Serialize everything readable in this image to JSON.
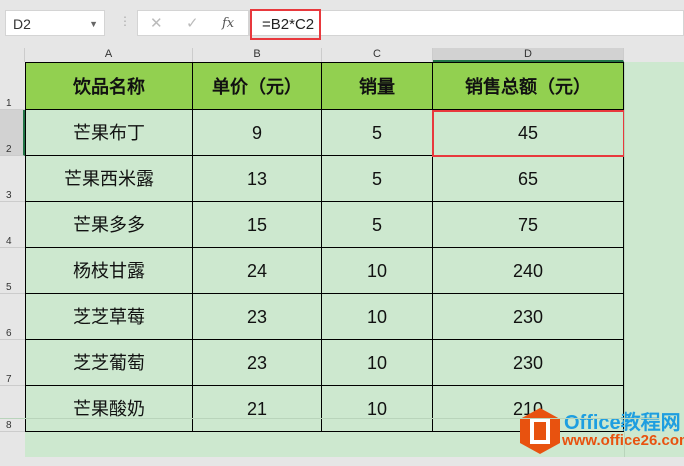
{
  "name_box": "D2",
  "formula": "=B2*C2",
  "formula_icons": [
    "cancel-icon",
    "confirm-icon",
    "fx-icon"
  ],
  "fx_label": "fx",
  "columns": [
    "A",
    "B",
    "C",
    "D"
  ],
  "rows": [
    "1",
    "2",
    "3",
    "4",
    "5",
    "6",
    "7",
    "8"
  ],
  "headers": [
    "饮品名称",
    "单价（元）",
    "销量",
    "销售总额（元）"
  ],
  "data": [
    [
      "芒果布丁",
      "9",
      "5",
      "45"
    ],
    [
      "芒果西米露",
      "13",
      "5",
      "65"
    ],
    [
      "芒果多多",
      "15",
      "5",
      "75"
    ],
    [
      "杨枝甘露",
      "24",
      "10",
      "240"
    ],
    [
      "芝芝草莓",
      "23",
      "10",
      "230"
    ],
    [
      "芝芝葡萄",
      "23",
      "10",
      "230"
    ],
    [
      "芒果酸奶",
      "21",
      "10",
      "210"
    ]
  ],
  "watermark": {
    "title": "Office教程网",
    "url": "www.office26.com"
  },
  "colors": {
    "header_fill": "#92d050",
    "cell_fill": "#cde8cf",
    "highlight": "#e8383d"
  }
}
